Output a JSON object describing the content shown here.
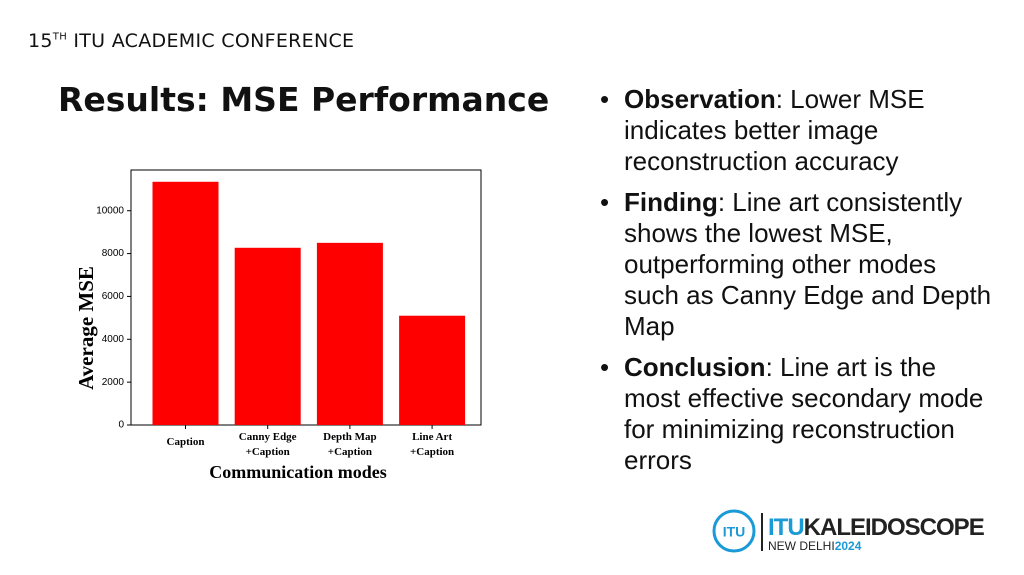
{
  "header": {
    "number": "15",
    "superscript": "TH",
    "text": "ITU ACADEMIC CONFERENCE"
  },
  "title": "Results: MSE Performance",
  "chart_data": {
    "type": "bar",
    "categories": [
      "Caption",
      "Canny Edge\n+Caption",
      "Depth Map\n+Caption",
      "Line Art\n+Caption"
    ],
    "values": [
      11350,
      8270,
      8500,
      5100
    ],
    "color": "#ff0000",
    "ylim": [
      0,
      11900
    ],
    "yticks": [
      0,
      2000,
      4000,
      6000,
      8000,
      10000
    ],
    "xlabel": "Communication modes",
    "ylabel": "Average MSE",
    "grid": false
  },
  "bullets": [
    {
      "label": "Observation",
      "text": ": Lower MSE indicates better image reconstruction accuracy"
    },
    {
      "label": "Finding",
      "text": ": Line art consistently shows the lowest MSE, outperforming other modes such as Canny Edge and Depth Map"
    },
    {
      "label": "Conclusion",
      "text": ": Line art is the most effective secondary mode for minimizing reconstruction errors"
    }
  ],
  "logo": {
    "emblem": "ITU",
    "itu": "ITU",
    "name": "KALEIDOSCOPE",
    "city": "NEW DELHI",
    "year": "2024"
  }
}
